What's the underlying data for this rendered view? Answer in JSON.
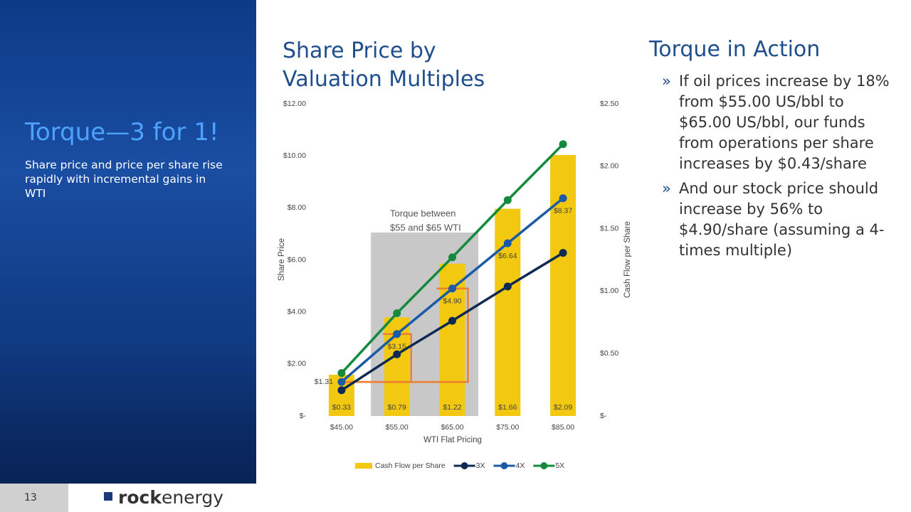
{
  "sidebar": {
    "title": "Torque—3 for 1!",
    "text": "Share price and price per share rise rapidly with incremental gains in WTI"
  },
  "footer": {
    "page": 13,
    "logo_bold": "rock",
    "logo_rest": "energy"
  },
  "chart_heading": "Share Price by Valuation Multiples",
  "side": {
    "title": "Torque in Action",
    "bullet_marker": "»",
    "bullets": [
      "If oil prices increase by 18% from $55.00 US/bbl to $65.00 US/bbl, our funds from operations per share increases by $0.43/share",
      "And our stock price should increase by 56% to $4.90/share (assuming a 4-times multiple)"
    ]
  },
  "chart_data": {
    "type": "combo",
    "x_label": "WTI Flat Pricing",
    "y_label": "Share Price",
    "y2_label": "Cash Flow per Share",
    "categories": [
      "$45.00",
      "$55.00",
      "$65.00",
      "$75.00",
      "$85.00"
    ],
    "ylim": [
      0,
      12
    ],
    "yticks": [
      {
        "value": 0,
        "label": "$-"
      },
      {
        "value": 2,
        "label": "$2.00"
      },
      {
        "value": 4,
        "label": "$4.00"
      },
      {
        "value": 6,
        "label": "$6.00"
      },
      {
        "value": 8,
        "label": "$8.00"
      },
      {
        "value": 10,
        "label": "$10.00"
      },
      {
        "value": 12,
        "label": "$12.00"
      }
    ],
    "y2lim": [
      0,
      2.5
    ],
    "y2ticks": [
      {
        "value": 0,
        "label": "$-"
      },
      {
        "value": 0.5,
        "label": "$0.50"
      },
      {
        "value": 1,
        "label": "$1.00"
      },
      {
        "value": 1.5,
        "label": "$1.50"
      },
      {
        "value": 2,
        "label": "$2.00"
      },
      {
        "value": 2.5,
        "label": "$2.50"
      }
    ],
    "annotation": {
      "lines": [
        "Torque between",
        "$55 and $65 WTI"
      ]
    },
    "series": [
      {
        "name": "Cash Flow per Share",
        "type": "bar",
        "axis": "y2",
        "color": "#f2c811",
        "values": [
          0.33,
          0.79,
          1.22,
          1.66,
          2.09
        ],
        "value_labels": [
          "$0.33",
          "$0.79",
          "$1.22",
          "$1.66",
          "$2.09"
        ]
      },
      {
        "name": "3X",
        "type": "line",
        "color": "#0f2a52",
        "values": [
          0.99,
          2.37,
          3.66,
          4.98,
          6.27
        ]
      },
      {
        "name": "4X",
        "type": "line",
        "color": "#1a5aa6",
        "values": [
          1.31,
          3.15,
          4.9,
          6.64,
          8.37
        ],
        "value_labels": [
          "$1.31",
          "$3.15",
          "$4.90",
          "$6.64",
          "$8.37"
        ]
      },
      {
        "name": "5X",
        "type": "line",
        "color": "#138a3c",
        "values": [
          1.65,
          3.95,
          6.1,
          8.3,
          10.45
        ]
      }
    ],
    "legend": "bottom"
  }
}
